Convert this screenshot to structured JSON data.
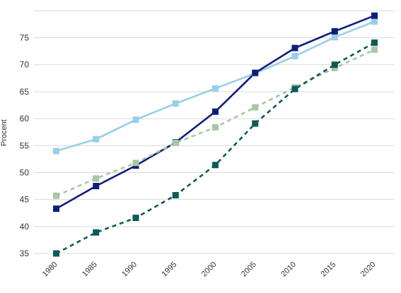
{
  "chart_data": {
    "type": "line",
    "title": "",
    "xlabel": "",
    "ylabel": "Procent",
    "ylim": [
      35,
      80
    ],
    "y_ticks": [
      35,
      40,
      45,
      50,
      55,
      60,
      65,
      70,
      75
    ],
    "x_ticks": [
      "1980",
      "1985",
      "1990",
      "1995",
      "2000",
      "2005",
      "2010",
      "2015",
      "2020"
    ],
    "x": [
      1980,
      1985,
      1990,
      1995,
      2000,
      2005,
      2010,
      2015,
      2020
    ],
    "grid": "horizontal",
    "legend": "none",
    "series": [
      {
        "color": "#98cfe8",
        "style": "solid",
        "values": [
          54.0,
          56.2,
          59.8,
          62.8,
          65.6,
          68.4,
          71.6,
          75.1,
          78.0
        ]
      },
      {
        "color": "#0d1e7a",
        "style": "solid",
        "values": [
          43.3,
          47.5,
          51.3,
          55.6,
          61.3,
          68.5,
          73.1,
          76.2,
          79.1
        ]
      },
      {
        "color": "#a9c6a5",
        "style": "dashed",
        "values": [
          45.7,
          48.9,
          51.8,
          55.5,
          58.4,
          62.1,
          65.8,
          69.4,
          72.8
        ]
      },
      {
        "color": "#0d5a57",
        "style": "dashed",
        "values": [
          35.0,
          38.9,
          41.6,
          45.8,
          51.4,
          59.1,
          65.5,
          70.0,
          74.1
        ]
      }
    ]
  }
}
